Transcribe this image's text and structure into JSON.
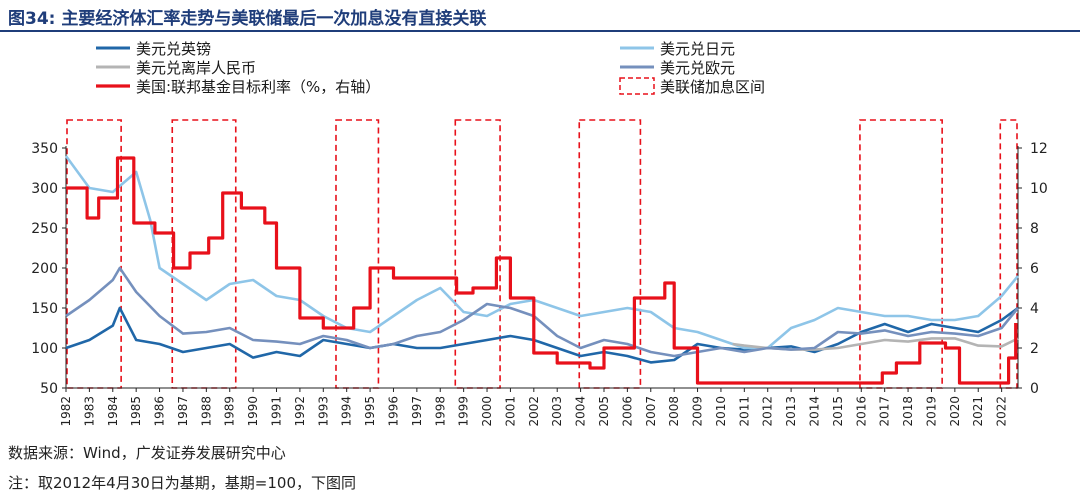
{
  "figure": {
    "title": "图34:  主要经济体汇率走势与美联储最后一次加息没有直接关联",
    "source": "数据来源：Wind，广发证券发展研究中心",
    "note": "注：取2012年4月30日为基期，基期=100，下图同"
  },
  "chart_data": {
    "type": "line",
    "title": "",
    "x_range": [
      1982,
      2022.7
    ],
    "x_tick_labels": [
      "1982",
      "1983",
      "1984",
      "1985",
      "1986",
      "1987",
      "1988",
      "1989",
      "1990",
      "1991",
      "1992",
      "1993",
      "1994",
      "1995",
      "1996",
      "1997",
      "1998",
      "1999",
      "2000",
      "2001",
      "2002",
      "2003",
      "2004",
      "2005",
      "2006",
      "2007",
      "2008",
      "2009",
      "2010",
      "2011",
      "2012",
      "2013",
      "2014",
      "2015",
      "2016",
      "2017",
      "2018",
      "2019",
      "2020",
      "2021",
      "2022"
    ],
    "y_left": {
      "range": [
        50,
        350
      ],
      "ticks": [
        50,
        100,
        150,
        200,
        250,
        300,
        350
      ]
    },
    "y_right": {
      "range": [
        0,
        12
      ],
      "ticks": [
        0,
        2,
        4,
        6,
        8,
        10,
        12
      ]
    },
    "series": [
      {
        "name": "美元兑英镑",
        "color": "#2067a8",
        "axis": "left",
        "x": [
          1982,
          1983,
          1984,
          1984.3,
          1985,
          1986,
          1987,
          1988,
          1989,
          1990,
          1991,
          1992,
          1993,
          1994,
          1995,
          1996,
          1997,
          1998,
          1999,
          2000,
          2001,
          2002,
          2003,
          2004,
          2005,
          2006,
          2007,
          2008,
          2009,
          2010,
          2011,
          2012,
          2013,
          2014,
          2015,
          2016,
          2017,
          2018,
          2019,
          2020,
          2021,
          2022,
          2022.7
        ],
        "y": [
          100,
          110,
          128,
          150,
          110,
          105,
          95,
          100,
          105,
          88,
          95,
          90,
          110,
          105,
          100,
          105,
          100,
          100,
          105,
          110,
          115,
          110,
          100,
          90,
          95,
          90,
          82,
          85,
          105,
          100,
          98,
          100,
          102,
          95,
          105,
          120,
          130,
          120,
          130,
          125,
          120,
          135,
          150
        ]
      },
      {
        "name": "美元兑日元",
        "color": "#8ec5e8",
        "axis": "left",
        "x": [
          1982,
          1983,
          1984,
          1985,
          1985.6,
          1986,
          1987,
          1988,
          1989,
          1990,
          1991,
          1992,
          1993,
          1994,
          1995,
          1996,
          1997,
          1998,
          1999,
          2000,
          2001,
          2002,
          2003,
          2004,
          2005,
          2006,
          2007,
          2008,
          2009,
          2010,
          2011,
          2012,
          2013,
          2014,
          2015,
          2016,
          2017,
          2018,
          2019,
          2020,
          2021,
          2022,
          2022.7
        ],
        "y": [
          340,
          300,
          295,
          320,
          260,
          200,
          180,
          160,
          180,
          185,
          165,
          160,
          140,
          125,
          120,
          140,
          160,
          175,
          145,
          140,
          155,
          160,
          150,
          140,
          145,
          150,
          145,
          125,
          120,
          110,
          100,
          100,
          125,
          135,
          150,
          145,
          140,
          140,
          135,
          135,
          140,
          165,
          190
        ]
      },
      {
        "name": "美元兑离岸人民币",
        "color": "#b4b4b4",
        "axis": "left",
        "x": [
          2010.5,
          2011,
          2012,
          2013,
          2014,
          2015,
          2016,
          2017,
          2018,
          2019,
          2020,
          2021,
          2022,
          2022.7
        ],
        "y": [
          105,
          103,
          100,
          98,
          98,
          100,
          105,
          110,
          108,
          112,
          112,
          103,
          102,
          112
        ]
      },
      {
        "name": "美元兑欧元",
        "color": "#7590bd",
        "axis": "left",
        "x": [
          1982,
          1983,
          1984,
          1984.3,
          1985,
          1986,
          1987,
          1988,
          1989,
          1990,
          1991,
          1992,
          1993,
          1994,
          1995,
          1996,
          1997,
          1998,
          1999,
          2000,
          2001,
          2002,
          2003,
          2004,
          2005,
          2006,
          2007,
          2008,
          2009,
          2010,
          2011,
          2012,
          2013,
          2014,
          2015,
          2016,
          2017,
          2018,
          2019,
          2020,
          2021,
          2022,
          2022.7
        ],
        "y": [
          140,
          160,
          185,
          200,
          170,
          140,
          118,
          120,
          125,
          110,
          108,
          105,
          115,
          110,
          100,
          105,
          115,
          120,
          135,
          155,
          150,
          140,
          115,
          100,
          110,
          105,
          95,
          90,
          95,
          100,
          95,
          100,
          98,
          100,
          120,
          118,
          122,
          115,
          120,
          118,
          115,
          125,
          150
        ]
      },
      {
        "name": "美国:联邦基金目标利率（%，右轴）",
        "color": "#e8101a",
        "axis": "right",
        "step": true,
        "x": [
          1982,
          1982.9,
          1983.4,
          1984.2,
          1984.9,
          1985.8,
          1986.6,
          1987.3,
          1988.1,
          1988.7,
          1989.5,
          1990.5,
          1991,
          1992,
          1993,
          1994,
          1994.3,
          1995,
          1996,
          1997.5,
          1998.7,
          1999.4,
          2000.4,
          2001,
          2002,
          2003,
          2004.4,
          2005,
          2006.3,
          2007.6,
          2008,
          2009,
          2015.9,
          2016.9,
          2017.5,
          2018.5,
          2019.6,
          2020.2,
          2021,
          2022.1,
          2022.3,
          2022.6
        ],
        "y": [
          10,
          8.5,
          9.5,
          11.5,
          8.25,
          7.75,
          6,
          6.75,
          7.5,
          9.75,
          9,
          8.25,
          6,
          3.5,
          3,
          3,
          4,
          6,
          5.5,
          5.5,
          4.75,
          5,
          6.5,
          4.5,
          1.75,
          1.25,
          1,
          2,
          4.5,
          5.25,
          2,
          0.25,
          0.25,
          0.75,
          1.25,
          2.25,
          2.0,
          0.25,
          0.25,
          0.25,
          1.5,
          3.25
        ]
      }
    ],
    "hike_windows": {
      "name": "美联储加息区间",
      "color": "#e8101a",
      "periods": [
        [
          1982,
          1984.4
        ],
        [
          1986.5,
          1989.3
        ],
        [
          1993.5,
          1995.4
        ],
        [
          1998.6,
          2000.6
        ],
        [
          2003.9,
          2006.6
        ],
        [
          2015.9,
          2019.5
        ],
        [
          2021.9,
          2022.7
        ]
      ]
    },
    "legend": {
      "position": "top",
      "entries": [
        "美元兑英镑",
        "美元兑日元",
        "美元兑离岸人民币",
        "美元兑欧元",
        "美国:联邦基金目标利率（%，右轴）",
        "美联储加息区间"
      ]
    }
  }
}
